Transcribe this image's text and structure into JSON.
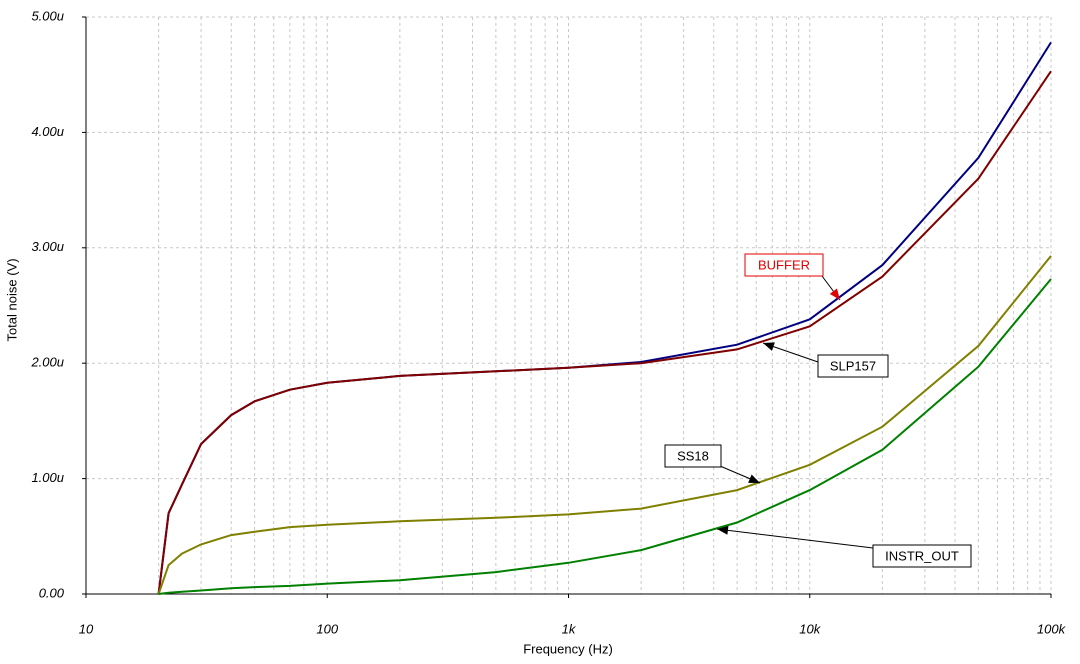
{
  "chart_data": {
    "type": "line",
    "x_label": "Frequency (Hz)",
    "y_label": "Total noise (V)",
    "log_x": true,
    "grid": true,
    "xlim": [
      10,
      100000
    ],
    "xticks": [
      10,
      100,
      {
        "value": 1000,
        "label": "1k"
      },
      {
        "value": 10000,
        "label": "10k"
      },
      {
        "value": 100000,
        "label": "100k"
      }
    ],
    "ylim": [
      0,
      5
    ],
    "yticks": [
      {
        "value": 0,
        "label": "0.00"
      },
      {
        "value": 1,
        "label": "1.00u"
      },
      {
        "value": 2,
        "label": "2.00u"
      },
      {
        "value": 3,
        "label": "3.00u"
      },
      {
        "value": 4,
        "label": "4.00u"
      },
      {
        "value": 5,
        "label": "5.00u"
      }
    ],
    "x": [
      20,
      22,
      25,
      30,
      40,
      50,
      70,
      100,
      200,
      500,
      1000,
      2000,
      5000,
      10000,
      20000,
      50000,
      100000
    ],
    "series": [
      {
        "name": "BUFFER",
        "color": "#000080",
        "values": [
          0,
          0.7,
          0.95,
          1.3,
          1.55,
          1.67,
          1.77,
          1.83,
          1.89,
          1.93,
          1.96,
          2.01,
          2.16,
          2.38,
          2.85,
          3.78,
          4.78
        ]
      },
      {
        "name": "SLP157",
        "color": "#800000",
        "values": [
          0,
          0.7,
          0.95,
          1.3,
          1.55,
          1.67,
          1.77,
          1.83,
          1.89,
          1.93,
          1.96,
          2.0,
          2.12,
          2.32,
          2.75,
          3.6,
          4.53
        ]
      },
      {
        "name": "SS18",
        "color": "#808000",
        "values": [
          0,
          0.25,
          0.35,
          0.43,
          0.51,
          0.54,
          0.58,
          0.6,
          0.63,
          0.66,
          0.69,
          0.74,
          0.9,
          1.12,
          1.45,
          2.15,
          2.93
        ]
      },
      {
        "name": "INSTR_OUT",
        "color": "#008000",
        "values": [
          0,
          0.01,
          0.02,
          0.03,
          0.05,
          0.06,
          0.07,
          0.09,
          0.12,
          0.19,
          0.27,
          0.38,
          0.62,
          0.9,
          1.25,
          1.97,
          2.73
        ]
      }
    ]
  }
}
